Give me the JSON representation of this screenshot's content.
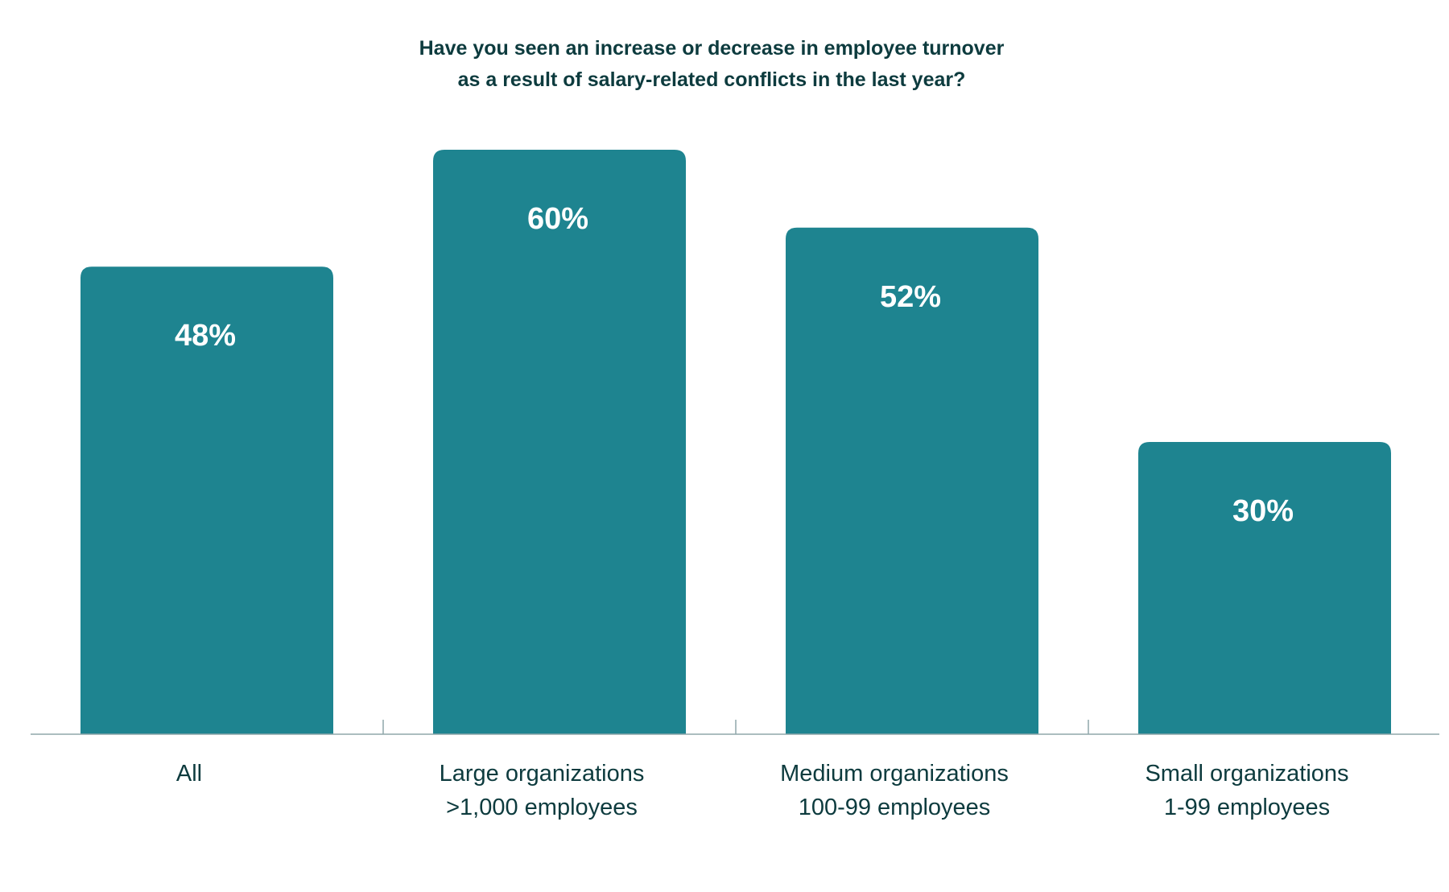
{
  "colors": {
    "bar": "#1e8490",
    "text": "#0d3b3e",
    "axis": "#8fa7aa",
    "value_label": "#ffffff"
  },
  "chart_data": {
    "type": "bar",
    "title_lines": [
      "Have you seen an increase or decrease in employee turnover",
      "as a result of salary-related conflicts in the last year?"
    ],
    "categories": [
      [
        "All"
      ],
      [
        "Large organizations",
        ">1,000 employees"
      ],
      [
        "Medium organizations",
        "100-99 employees"
      ],
      [
        "Small organizations",
        "1-99 employees"
      ]
    ],
    "values": [
      48,
      60,
      52,
      30
    ],
    "value_labels": [
      "48%",
      "60%",
      "52%",
      "30%"
    ],
    "unit": "%",
    "ylim": [
      0,
      60
    ],
    "grid": false,
    "legend": "none"
  }
}
